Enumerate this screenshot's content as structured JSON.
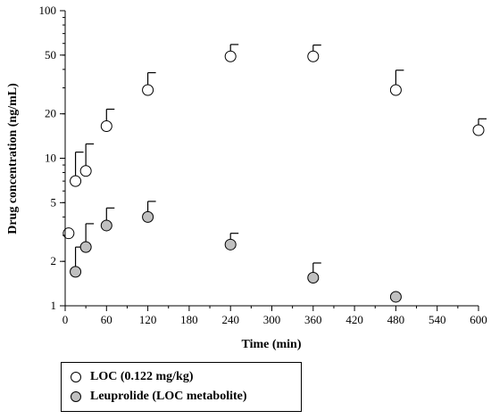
{
  "chart_data": {
    "type": "scatter",
    "xlabel": "Time (min)",
    "ylabel": "Drug concentration (ng/mL)",
    "x_ticks": [
      0,
      60,
      120,
      180,
      240,
      300,
      360,
      420,
      480,
      540,
      600
    ],
    "y_ticks": [
      1,
      2,
      5,
      10,
      20,
      50,
      100
    ],
    "xlim": [
      0,
      600
    ],
    "ylim": [
      1,
      100
    ],
    "y_scale": "log",
    "grid": false,
    "legend_position": "bottom-left",
    "series": [
      {
        "name": "LOC (0.122 mg/kg)",
        "color": "#ffffff",
        "x": [
          5,
          15,
          30,
          60,
          120,
          240,
          360,
          480,
          600
        ],
        "y": [
          3.1,
          7.0,
          8.2,
          16.5,
          29.0,
          49.0,
          49.0,
          29.0,
          15.5
        ],
        "error_upper": [
          null,
          11.0,
          12.5,
          21.5,
          38.0,
          59.0,
          58.5,
          39.5,
          18.5
        ]
      },
      {
        "name": "Leuprolide (LOC metabolite)",
        "color": "#c0c0c0",
        "x": [
          15,
          30,
          60,
          120,
          240,
          360,
          480
        ],
        "y": [
          1.7,
          2.5,
          3.5,
          4.0,
          2.6,
          1.55,
          1.15
        ],
        "error_upper": [
          2.5,
          3.6,
          4.6,
          5.1,
          3.1,
          1.95,
          null
        ]
      }
    ]
  }
}
